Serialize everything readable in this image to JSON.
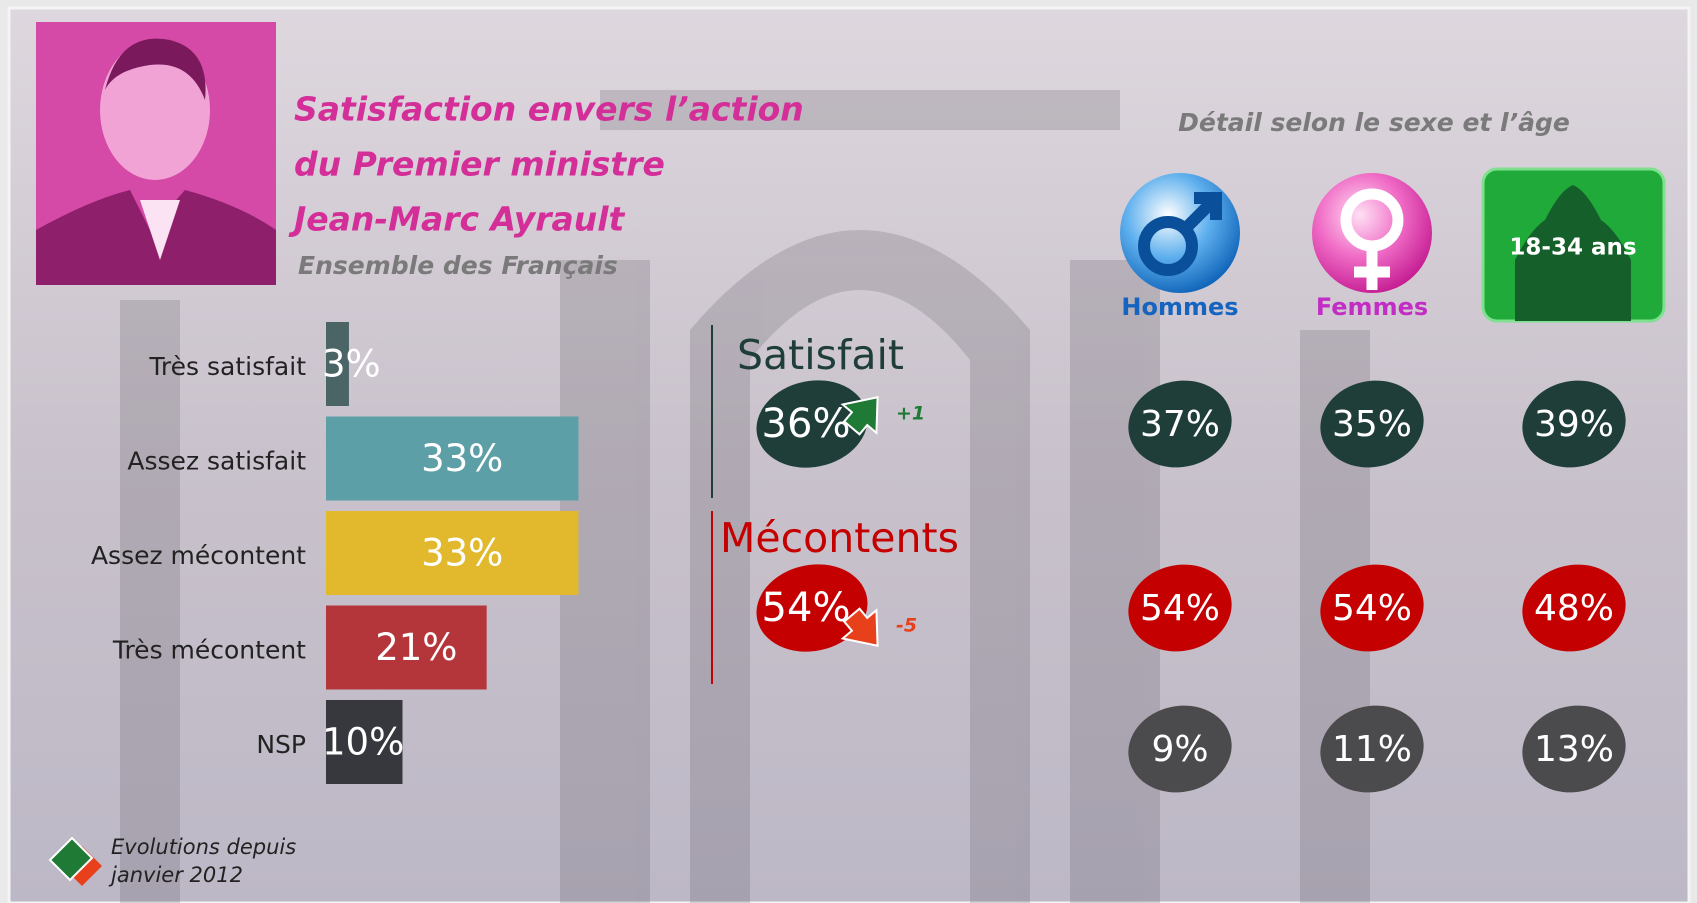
{
  "header": {
    "title": [
      "Satisfaction envers l’action",
      "du Premier ministre",
      "Jean-Marc Ayrault"
    ],
    "subtitle": "Ensemble des Français"
  },
  "chart_data": {
    "type": "bar",
    "orientation": "horizontal",
    "categories": [
      "Très satisfait",
      "Assez satisfait",
      "Assez mécontent",
      "Très mécontent",
      "NSP"
    ],
    "values": [
      3,
      33,
      33,
      21,
      10
    ],
    "value_labels": [
      "3%",
      "33%",
      "33%",
      "21%",
      "10%"
    ],
    "colors": [
      "#4b6466",
      "#5c9fa7",
      "#e2b82c",
      "#b5363a",
      "#37383d"
    ]
  },
  "summary": [
    {
      "label": "Satisfait",
      "value": 36,
      "value_label": "36%",
      "change": 1,
      "change_label": "+1",
      "color": "#1f3e3a",
      "change_color": "#1e7a34"
    },
    {
      "label": "Mécontents",
      "value": 54,
      "value_label": "54%",
      "change": -5,
      "change_label": "-5",
      "color": "#c40000",
      "change_color": "#e8401a"
    }
  ],
  "detail": {
    "title": "Détail selon le sexe et l’âge",
    "groups": [
      {
        "label": "Hommes",
        "color": "#1565c0"
      },
      {
        "label": "Femmes",
        "color": "#c22ec4"
      },
      {
        "label": "18-34 ans",
        "color": "#ffffff"
      }
    ],
    "rows": [
      {
        "color": "#1f3e3a",
        "values": [
          37,
          35,
          39
        ],
        "value_labels": [
          "37%",
          "35%",
          "39%"
        ]
      },
      {
        "color": "#c40000",
        "values": [
          54,
          54,
          48
        ],
        "value_labels": [
          "54%",
          "54%",
          "48%"
        ]
      },
      {
        "color": "#4b4b4d",
        "values": [
          9,
          11,
          13
        ],
        "value_labels": [
          "9%",
          "11%",
          "13%"
        ]
      }
    ]
  },
  "footnote": [
    "Evolutions depuis",
    "janvier 2012"
  ]
}
